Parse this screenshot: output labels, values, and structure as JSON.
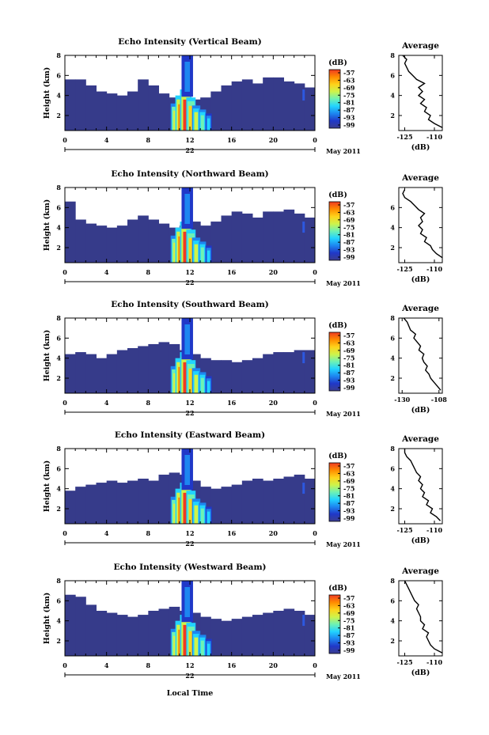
{
  "figure": {
    "date_label": "May 2011",
    "date_tick": "22",
    "xlabel": "Local Time",
    "ylabel": "Height (km)",
    "colorbar_unit": "(dB)",
    "avg_title": "Average",
    "avg_xlabel": "(dB)"
  },
  "colorbar": {
    "ticks": [
      "-57",
      "-63",
      "-69",
      "-75",
      "-81",
      "-87",
      "-93",
      "-99"
    ],
    "colors": [
      "#f03a22",
      "#ff8a00",
      "#ffd21a",
      "#cff34a",
      "#6ef2b4",
      "#22d3ff",
      "#1d86f0",
      "#2038c8",
      "#3b3d8f"
    ]
  },
  "chart_data": [
    {
      "type": "heatmap",
      "title": "Echo Intensity (Vertical Beam)",
      "x_ticks": [
        "0",
        "4",
        "8",
        "12",
        "16",
        "20",
        "0"
      ],
      "xlim": [
        0,
        24
      ],
      "y_ticks": [
        "8",
        "6",
        "4",
        "2"
      ],
      "ylim": [
        0.5,
        8
      ],
      "background_level_top_km": [
        5.6,
        5.6,
        5.0,
        4.4,
        4.2,
        4.0,
        4.4,
        5.6,
        5.0,
        4.2,
        3.8,
        3.6,
        3.6,
        3.8,
        4.4,
        5.0,
        5.4,
        5.6,
        5.2,
        5.8,
        5.8,
        5.4,
        5.2,
        4.8,
        4.4
      ],
      "average": {
        "x_ticks": [
          "-125",
          "-110"
        ],
        "xlim": [
          -128,
          -106
        ],
        "y_ticks": [
          "8",
          "6",
          "4",
          "2"
        ],
        "height_km": [
          0.8,
          1.2,
          1.6,
          2.0,
          2.4,
          2.8,
          3.2,
          3.6,
          4.0,
          4.4,
          4.8,
          5.2,
          5.6,
          6.0,
          6.4,
          6.8,
          7.2,
          7.6,
          8.0
        ],
        "value_db": [
          -106,
          -110,
          -113,
          -112,
          -115,
          -114,
          -117,
          -115,
          -118,
          -116,
          -118,
          -115,
          -119,
          -121,
          -123,
          -124,
          -125,
          -124,
          -126
        ]
      }
    },
    {
      "type": "heatmap",
      "title": "Echo Intensity (Northward Beam)",
      "x_ticks": [
        "0",
        "4",
        "8",
        "12",
        "16",
        "20",
        "0"
      ],
      "xlim": [
        0,
        24
      ],
      "y_ticks": [
        "8",
        "6",
        "4",
        "2"
      ],
      "ylim": [
        0.5,
        8
      ],
      "background_level_top_km": [
        6.6,
        4.8,
        4.4,
        4.2,
        4.0,
        4.2,
        4.8,
        5.2,
        4.8,
        4.4,
        4.0,
        4.2,
        4.6,
        4.2,
        4.6,
        5.2,
        5.6,
        5.4,
        5.0,
        5.6,
        5.6,
        5.8,
        5.4,
        5.0,
        4.6
      ],
      "average": {
        "x_ticks": [
          "-125",
          "-110"
        ],
        "xlim": [
          -128,
          -106
        ],
        "y_ticks": [
          "6",
          "4",
          "2"
        ],
        "height_km": [
          1.0,
          1.4,
          1.8,
          2.2,
          2.6,
          3.0,
          3.4,
          3.8,
          4.2,
          4.6,
          5.0,
          5.4,
          5.8,
          6.2,
          6.6,
          7.0,
          7.4,
          7.8
        ],
        "value_db": [
          -106,
          -109,
          -111,
          -112,
          -115,
          -114,
          -117,
          -116,
          -118,
          -116,
          -117,
          -115,
          -118,
          -120,
          -122,
          -125,
          -126,
          -125
        ]
      }
    },
    {
      "type": "heatmap",
      "title": "Echo Intensity (Southward Beam)",
      "x_ticks": [
        "0",
        "4",
        "8",
        "12",
        "16",
        "20",
        "0"
      ],
      "xlim": [
        0,
        24
      ],
      "y_ticks": [
        "8",
        "6",
        "4",
        "2"
      ],
      "ylim": [
        0.5,
        8
      ],
      "background_level_top_km": [
        4.4,
        4.6,
        4.4,
        4.0,
        4.4,
        4.8,
        5.0,
        5.2,
        5.4,
        5.6,
        5.4,
        4.8,
        4.4,
        4.0,
        3.8,
        3.8,
        3.6,
        3.8,
        4.0,
        4.4,
        4.6,
        4.6,
        4.8,
        4.8,
        4.6
      ],
      "average": {
        "x_ticks": [
          "-130",
          "-108"
        ],
        "xlim": [
          -132,
          -106
        ],
        "y_ticks": [
          "8",
          "6",
          "4",
          "2"
        ],
        "height_km": [
          0.8,
          1.2,
          1.6,
          2.0,
          2.4,
          2.8,
          3.2,
          3.6,
          4.0,
          4.4,
          4.8,
          5.2,
          5.6,
          6.0,
          6.4,
          6.8,
          7.2,
          7.6,
          8.0
        ],
        "value_db": [
          -107,
          -109,
          -111,
          -113,
          -114,
          -116,
          -115,
          -117,
          -118,
          -117,
          -120,
          -119,
          -121,
          -123,
          -122,
          -125,
          -126,
          -127,
          -129
        ]
      }
    },
    {
      "type": "heatmap",
      "title": "Echo Intensity (Eastward Beam)",
      "x_ticks": [
        "0",
        "4",
        "8",
        "12",
        "16",
        "20",
        "0"
      ],
      "xlim": [
        0,
        24
      ],
      "y_ticks": [
        "8",
        "6",
        "4",
        "2"
      ],
      "ylim": [
        0.5,
        8
      ],
      "background_level_top_km": [
        3.8,
        4.2,
        4.4,
        4.6,
        4.8,
        4.6,
        4.8,
        5.0,
        4.8,
        5.4,
        5.6,
        5.4,
        4.8,
        4.2,
        4.0,
        4.2,
        4.4,
        4.8,
        5.0,
        4.8,
        5.0,
        5.2,
        5.4,
        5.0,
        4.6
      ],
      "average": {
        "x_ticks": [
          "-125",
          "-110"
        ],
        "xlim": [
          -128,
          -106
        ],
        "y_ticks": [
          "8",
          "6",
          "4",
          "2"
        ],
        "height_km": [
          0.8,
          1.2,
          1.6,
          2.0,
          2.4,
          2.8,
          3.2,
          3.6,
          4.0,
          4.4,
          4.8,
          5.2,
          5.6,
          6.0,
          6.4,
          6.8,
          7.2,
          7.6,
          8.0
        ],
        "value_db": [
          -107,
          -109,
          -112,
          -111,
          -114,
          -113,
          -116,
          -115,
          -117,
          -116,
          -118,
          -117,
          -119,
          -120,
          -121,
          -122,
          -124,
          -125,
          -125
        ]
      }
    },
    {
      "type": "heatmap",
      "title": "Echo Intensity (Westward Beam)",
      "x_ticks": [
        "0",
        "4",
        "8",
        "12",
        "16",
        "20",
        "0"
      ],
      "xlim": [
        0,
        24
      ],
      "y_ticks": [
        "8",
        "6",
        "4",
        "2"
      ],
      "ylim": [
        0.5,
        8
      ],
      "background_level_top_km": [
        6.6,
        6.4,
        5.6,
        5.0,
        4.8,
        4.6,
        4.4,
        4.6,
        5.0,
        5.2,
        5.4,
        5.0,
        4.8,
        4.4,
        4.2,
        4.0,
        4.2,
        4.4,
        4.6,
        4.8,
        5.0,
        5.2,
        5.0,
        4.6,
        4.2
      ],
      "average": {
        "x_ticks": [
          "-125",
          "-110"
        ],
        "xlim": [
          -128,
          -106
        ],
        "y_ticks": [
          "8",
          "6",
          "4",
          "2"
        ],
        "height_km": [
          0.8,
          1.2,
          1.6,
          2.0,
          2.4,
          2.8,
          3.2,
          3.6,
          4.0,
          4.4,
          4.8,
          5.2,
          5.6,
          6.0,
          6.4,
          6.8,
          7.2,
          7.6,
          8.0
        ],
        "value_db": [
          -106,
          -110,
          -112,
          -113,
          -114,
          -113,
          -116,
          -115,
          -117,
          -117,
          -118,
          -119,
          -118,
          -120,
          -121,
          -122,
          -123,
          -124,
          -125
        ]
      }
    }
  ]
}
